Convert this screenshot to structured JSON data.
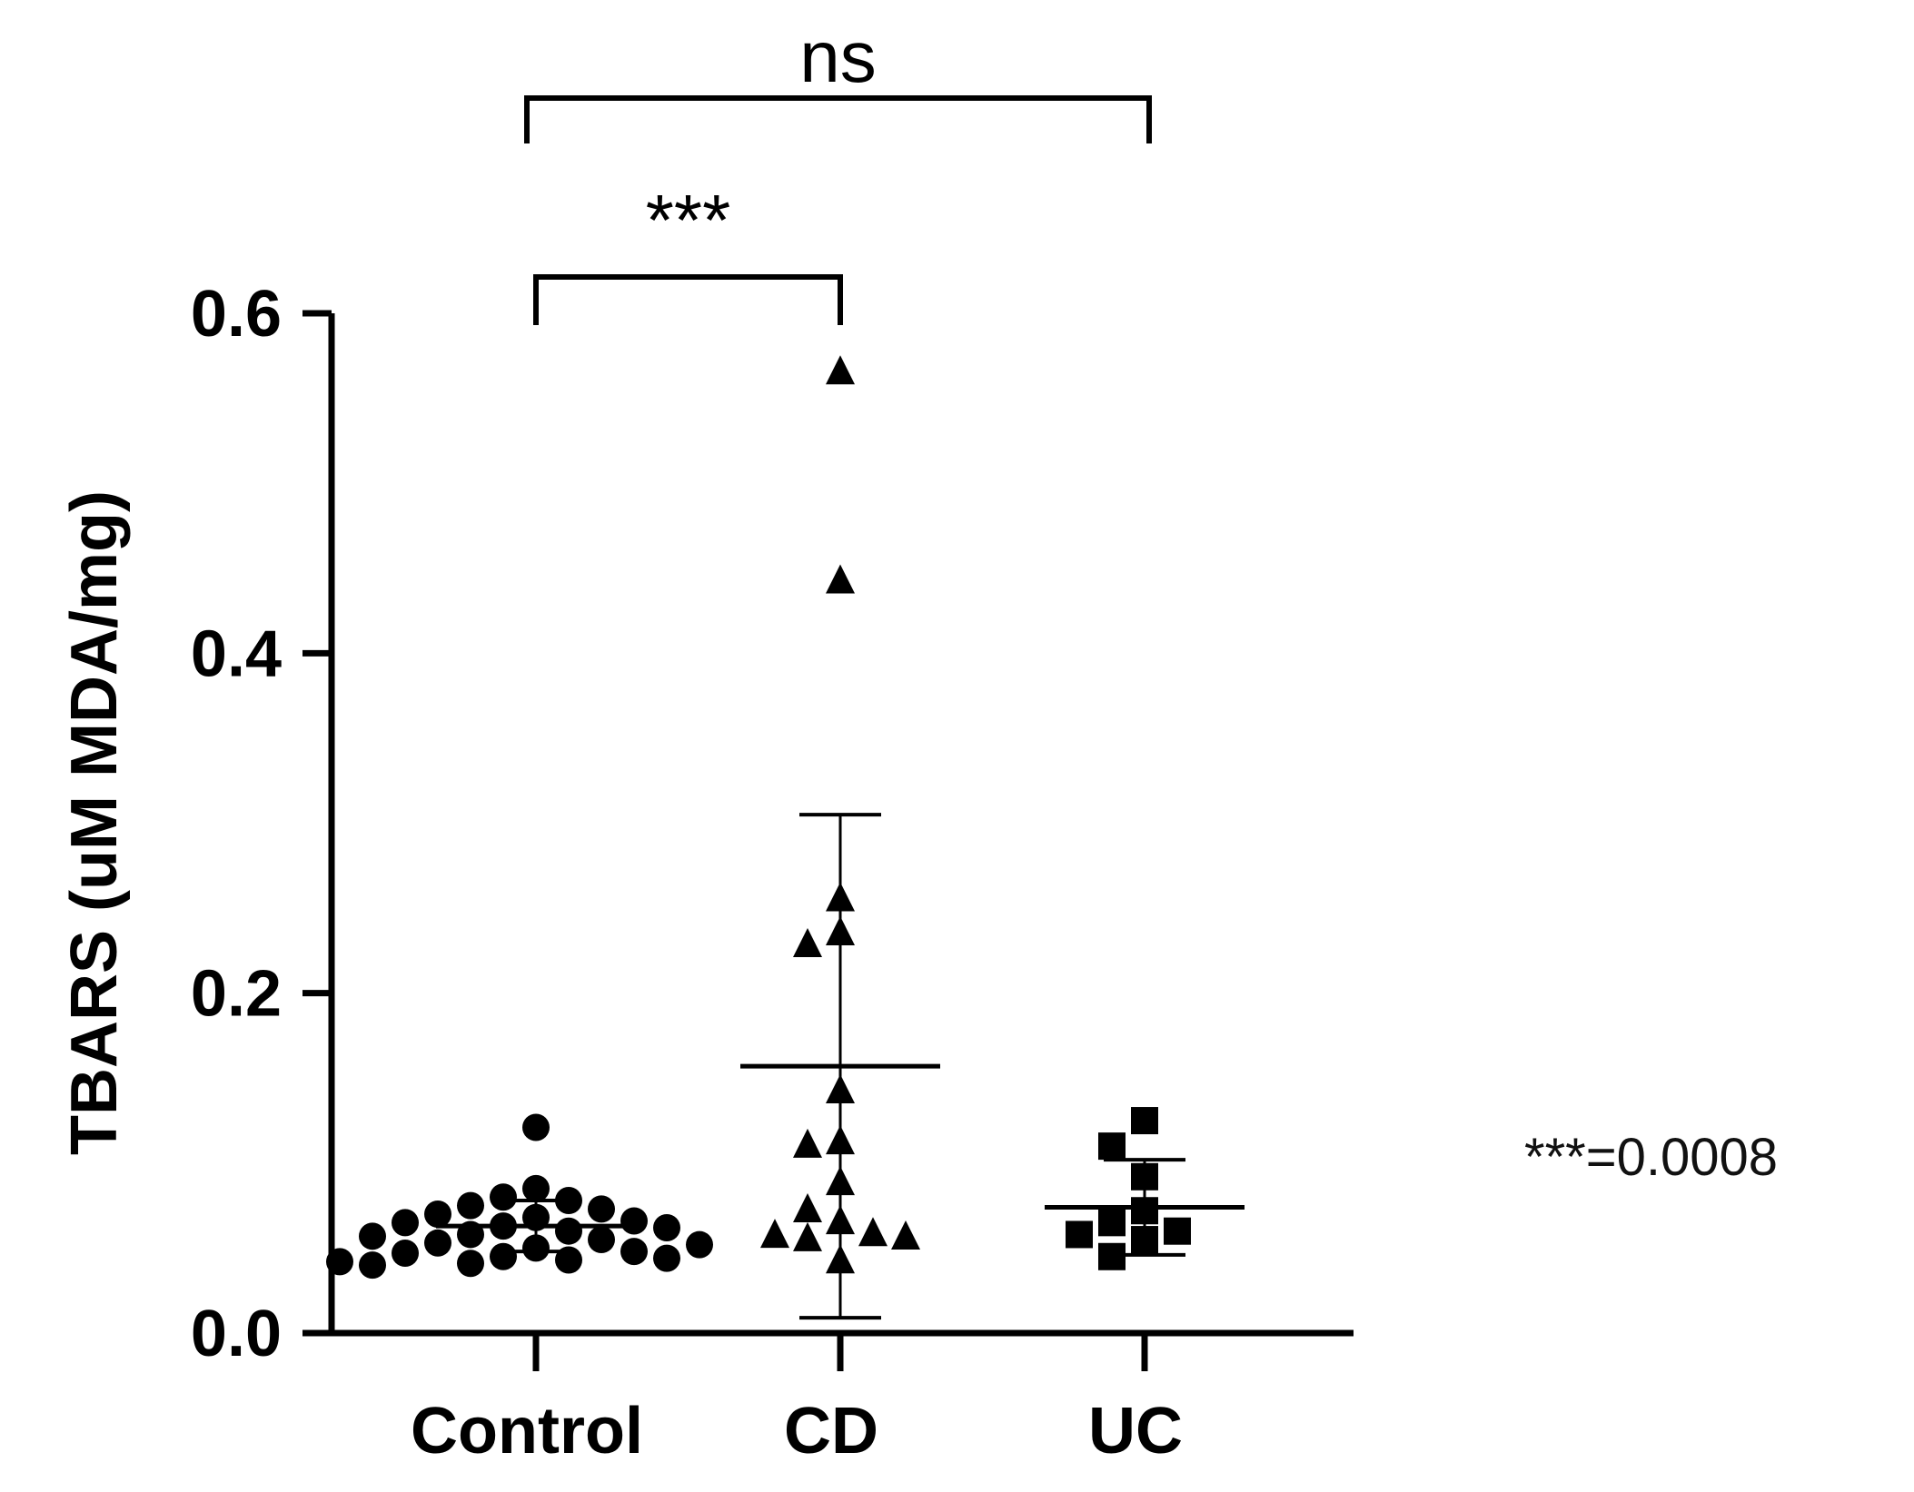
{
  "chart_data": {
    "type": "scatter",
    "subtype": "dot-plot-with-mean-and-sd",
    "ylabel": "TBARS (uM MDA/mg)",
    "ylim": [
      0,
      0.6
    ],
    "yticks": [
      0.0,
      0.2,
      0.4,
      0.6
    ],
    "ytick_labels": [
      "0.0",
      "0.2",
      "0.4",
      "0.6"
    ],
    "categories": [
      "Control",
      "CD",
      "UC"
    ],
    "legend": "none",
    "grid": false,
    "series": [
      {
        "category": "Control",
        "marker": "circle",
        "mean": 0.063,
        "sd": 0.015,
        "values": [
          0.121,
          0.085,
          0.08,
          0.078,
          0.075,
          0.073,
          0.07,
          0.068,
          0.066,
          0.065,
          0.063,
          0.062,
          0.06,
          0.058,
          0.057,
          0.055,
          0.053,
          0.052,
          0.05,
          0.048,
          0.047,
          0.045,
          0.044,
          0.043,
          0.042,
          0.041,
          0.04
        ]
      },
      {
        "category": "CD",
        "marker": "triangle",
        "mean": 0.157,
        "sd": 0.148,
        "values": [
          0.565,
          0.442,
          0.255,
          0.235,
          0.228,
          0.142,
          0.112,
          0.11,
          0.088,
          0.072,
          0.065,
          0.058,
          0.057,
          0.056,
          0.055,
          0.042
        ]
      },
      {
        "category": "UC",
        "marker": "square",
        "mean": 0.074,
        "sd": 0.028,
        "values": [
          0.125,
          0.11,
          0.092,
          0.072,
          0.065,
          0.06,
          0.058,
          0.055,
          0.045
        ]
      }
    ],
    "annotations": [
      {
        "from": "Control",
        "to": "CD",
        "label": "***"
      },
      {
        "from": "Control",
        "to": "UC",
        "label": "ns"
      }
    ],
    "note": "***=0.0008"
  }
}
